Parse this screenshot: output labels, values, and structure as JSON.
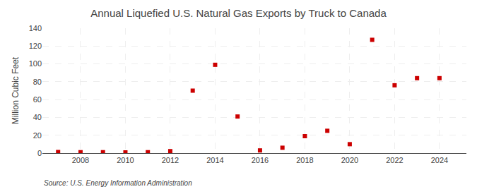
{
  "chart_data": {
    "type": "scatter",
    "title": "Annual Liquefied U.S. Natural Gas Exports by Truck to Canada",
    "ylabel": "Million Cubic Feet",
    "annotation": "Source: U.S. Energy Information Administration",
    "x": [
      2007,
      2008,
      2009,
      2010,
      2011,
      2012,
      2013,
      2014,
      2015,
      2016,
      2017,
      2018,
      2019,
      2020,
      2021,
      2022,
      2023,
      2024
    ],
    "values": [
      1.2,
      1.0,
      1.0,
      0.8,
      1.0,
      2.2,
      70,
      99,
      41,
      3,
      6,
      19,
      25,
      10,
      127,
      76,
      84,
      84
    ],
    "color": "#cc0000",
    "marker": "square",
    "xlim": [
      2006.3,
      2025.2
    ],
    "xticks": [
      2008,
      2010,
      2012,
      2014,
      2016,
      2018,
      2020,
      2022,
      2024
    ],
    "ylim": [
      0,
      140
    ],
    "yticks": [
      0,
      20,
      40,
      60,
      80,
      100,
      120,
      140
    ],
    "grid": true
  }
}
